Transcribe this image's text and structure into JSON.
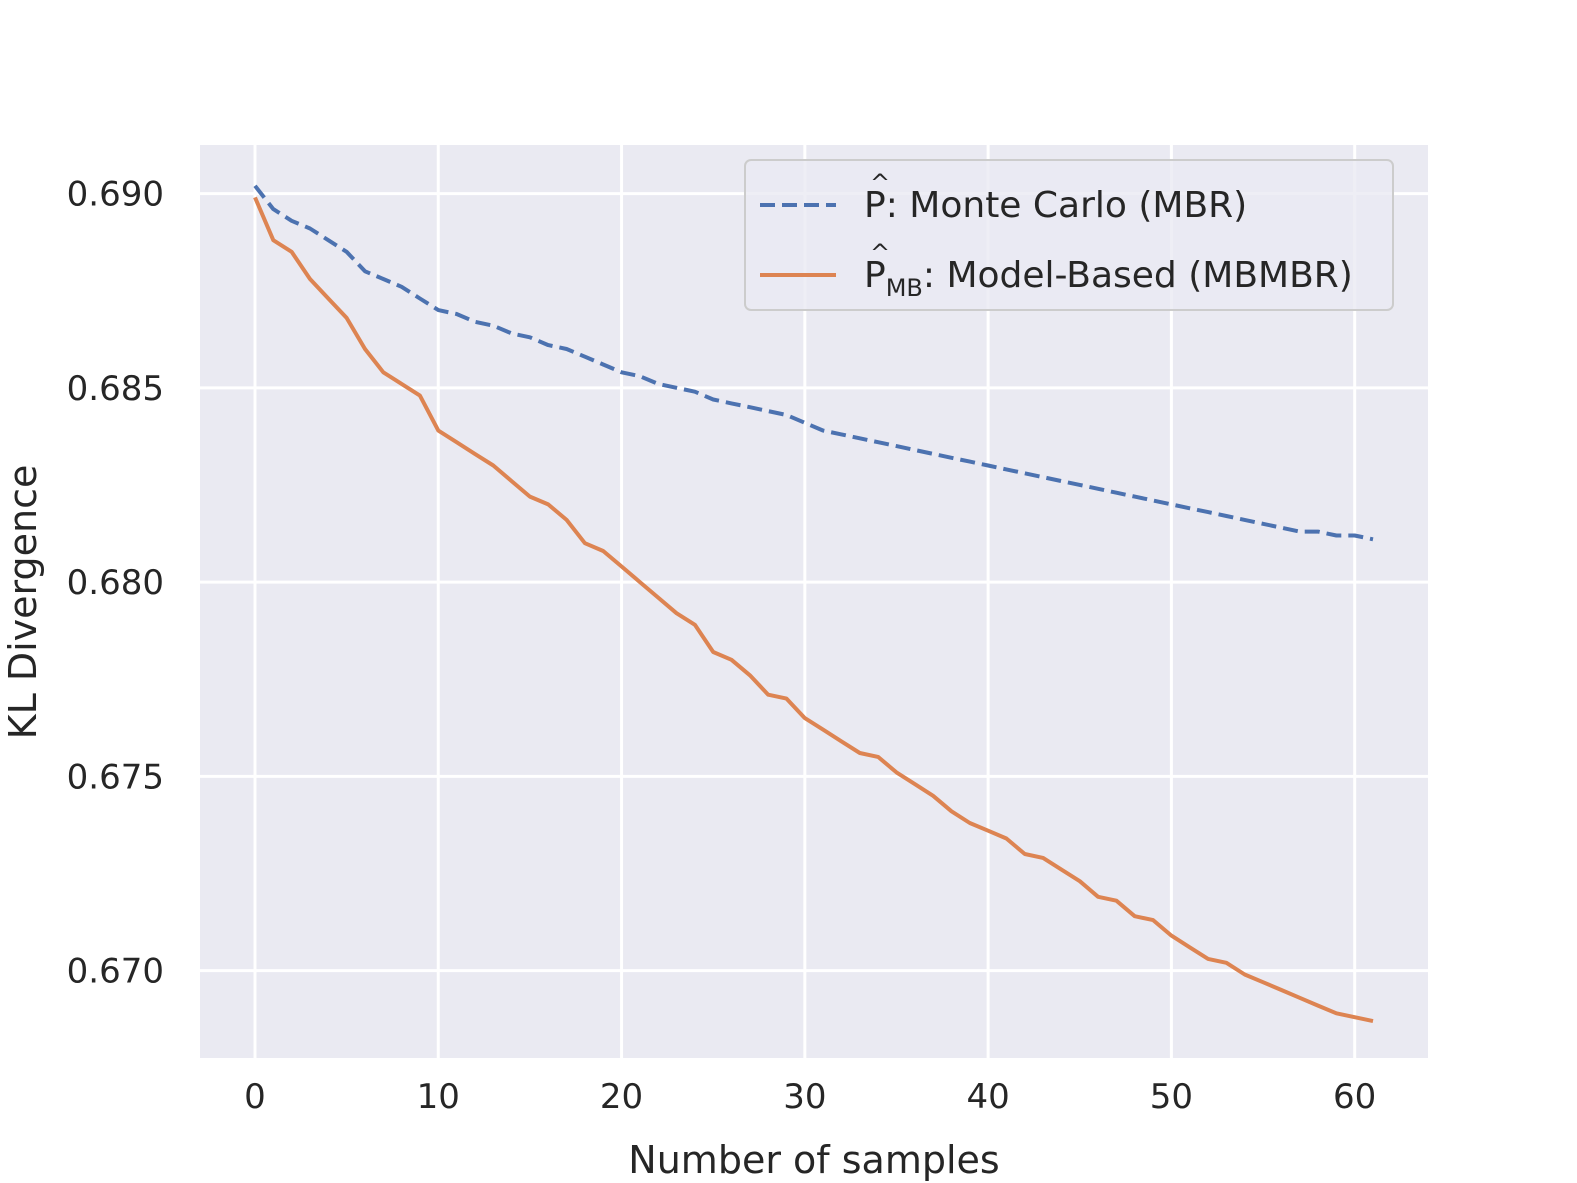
{
  "chart_data": {
    "type": "line",
    "xlabel": "Number of samples",
    "ylabel": "KL Divergence",
    "xlim": [
      -3,
      64
    ],
    "ylim": [
      0.66775,
      0.69125
    ],
    "xticks": [
      0,
      10,
      20,
      30,
      40,
      50,
      60
    ],
    "xtick_labels": [
      "0",
      "10",
      "20",
      "30",
      "40",
      "50",
      "60"
    ],
    "yticks": [
      0.67,
      0.675,
      0.68,
      0.685,
      0.69
    ],
    "ytick_labels": [
      "0.670",
      "0.675",
      "0.680",
      "0.685",
      "0.690"
    ],
    "grid": true,
    "legend_position": "upper-right",
    "x": [
      0,
      1,
      2,
      3,
      4,
      5,
      6,
      7,
      8,
      9,
      10,
      11,
      12,
      13,
      14,
      15,
      16,
      17,
      18,
      19,
      20,
      21,
      22,
      23,
      24,
      25,
      26,
      27,
      28,
      29,
      30,
      31,
      32,
      33,
      34,
      35,
      36,
      37,
      38,
      39,
      40,
      41,
      42,
      43,
      44,
      45,
      46,
      47,
      48,
      49,
      50,
      51,
      52,
      53,
      54,
      55,
      56,
      57,
      58,
      59,
      60,
      61
    ],
    "series": [
      {
        "name": "Monte Carlo (MBR)",
        "legend_base": "P",
        "legend_sub": "",
        "legend_rest": ": Monte Carlo (MBR)",
        "color": "#4c72b0",
        "style": "dashed",
        "values": [
          0.6902,
          0.6896,
          0.6893,
          0.6891,
          0.6888,
          0.6885,
          0.688,
          0.6878,
          0.6876,
          0.6873,
          0.687,
          0.6869,
          0.6867,
          0.6866,
          0.6864,
          0.6863,
          0.6861,
          0.686,
          0.6858,
          0.6856,
          0.6854,
          0.6853,
          0.6851,
          0.685,
          0.6849,
          0.6847,
          0.6846,
          0.6845,
          0.6844,
          0.6843,
          0.6841,
          0.6839,
          0.6838,
          0.6837,
          0.6836,
          0.6835,
          0.6834,
          0.6833,
          0.6832,
          0.6831,
          0.683,
          0.6829,
          0.6828,
          0.6827,
          0.6826,
          0.6825,
          0.6824,
          0.6823,
          0.6822,
          0.6821,
          0.682,
          0.6819,
          0.6818,
          0.6817,
          0.6816,
          0.6815,
          0.6814,
          0.6813,
          0.6813,
          0.6812,
          0.6812,
          0.6811
        ]
      },
      {
        "name": "Model-Based (MBMBR)",
        "legend_base": "P",
        "legend_sub": "MB",
        "legend_rest": ": Model-Based (MBMBR)",
        "color": "#dd8452",
        "style": "solid",
        "values": [
          0.6899,
          0.6888,
          0.6885,
          0.6878,
          0.6873,
          0.6868,
          0.686,
          0.6854,
          0.6851,
          0.6848,
          0.6839,
          0.6836,
          0.6833,
          0.683,
          0.6826,
          0.6822,
          0.682,
          0.6816,
          0.681,
          0.6808,
          0.6804,
          0.68,
          0.6796,
          0.6792,
          0.6789,
          0.6782,
          0.678,
          0.6776,
          0.6771,
          0.677,
          0.6765,
          0.6762,
          0.6759,
          0.6756,
          0.6755,
          0.6751,
          0.6748,
          0.6745,
          0.6741,
          0.6738,
          0.6736,
          0.6734,
          0.673,
          0.6729,
          0.6726,
          0.6723,
          0.6719,
          0.6718,
          0.6714,
          0.6713,
          0.6709,
          0.6706,
          0.6703,
          0.6702,
          0.6699,
          0.6697,
          0.6695,
          0.6693,
          0.6691,
          0.6689,
          0.6688,
          0.6687
        ]
      }
    ]
  }
}
